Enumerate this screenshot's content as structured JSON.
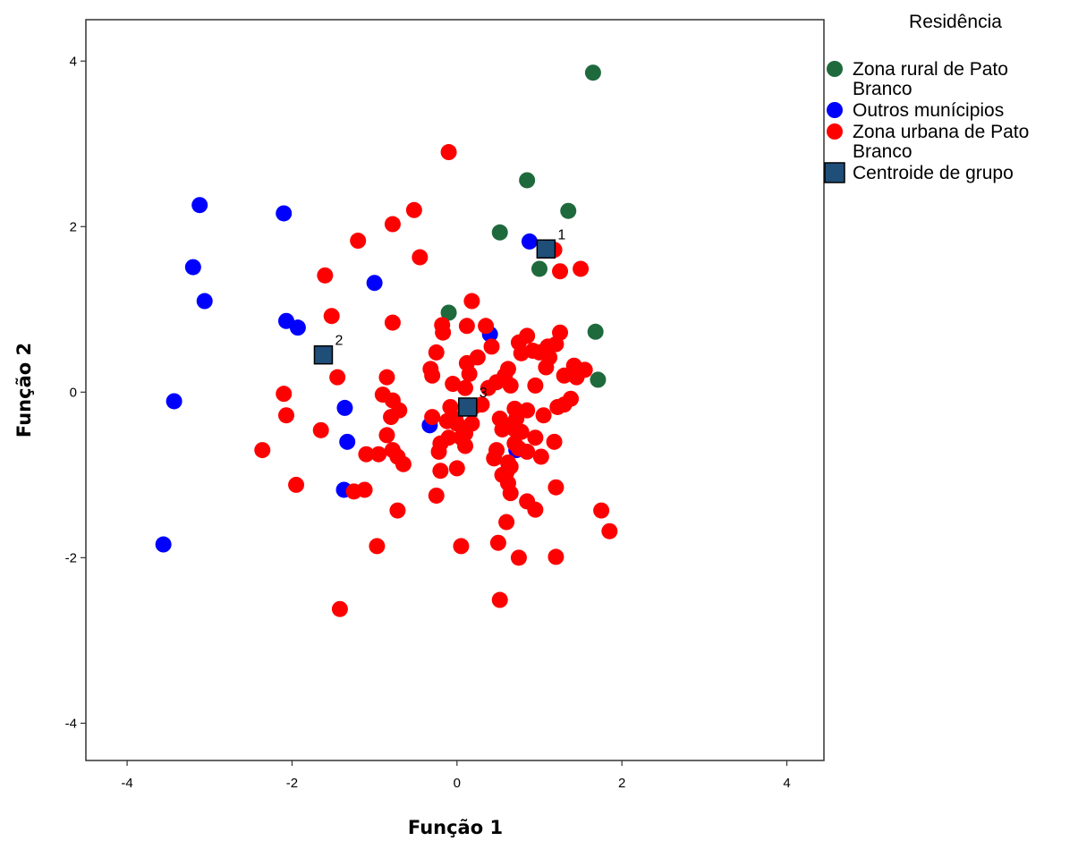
{
  "chart_data": {
    "type": "scatter",
    "xlabel": "Função 1",
    "ylabel": "Função 2",
    "xlim": [
      -4.5,
      4.45
    ],
    "ylim": [
      -4.45,
      4.5
    ],
    "xticks": [
      -4,
      -2,
      0,
      2,
      4
    ],
    "yticks": [
      -4,
      -2,
      0,
      2,
      4
    ],
    "xtick_labels": [
      "-4",
      "-2",
      "0",
      "2",
      "4"
    ],
    "ytick_labels": [
      "-4",
      "-2",
      "0",
      "2",
      "4"
    ],
    "grid": false,
    "legend_placement": "right",
    "legend_title": "Residência",
    "series": [
      {
        "name": "Zona rural de Pato Branco",
        "legend_lines": [
          "Zona rural de Pato",
          "Branco"
        ],
        "color": "#1e6a3d",
        "marker": "circle",
        "points": [
          [
            1.65,
            3.86
          ],
          [
            0.85,
            2.56
          ],
          [
            1.35,
            2.19
          ],
          [
            0.52,
            1.93
          ],
          [
            1.0,
            1.49
          ],
          [
            -0.1,
            0.96
          ],
          [
            1.68,
            0.73
          ],
          [
            1.71,
            0.15
          ]
        ]
      },
      {
        "name": "Outros munícipios",
        "legend_lines": [
          "Outros munícipios"
        ],
        "color": "#0000ff",
        "marker": "circle",
        "points": [
          [
            -3.12,
            2.26
          ],
          [
            -2.1,
            2.16
          ],
          [
            -3.2,
            1.51
          ],
          [
            -3.06,
            1.1
          ],
          [
            -1.0,
            1.32
          ],
          [
            0.88,
            1.82
          ],
          [
            -2.07,
            0.86
          ],
          [
            -1.93,
            0.78
          ],
          [
            0.4,
            0.7
          ],
          [
            -3.43,
            -0.11
          ],
          [
            -1.36,
            -0.19
          ],
          [
            -0.33,
            -0.4
          ],
          [
            -1.33,
            -0.6
          ],
          [
            0.72,
            -0.7
          ],
          [
            -1.37,
            -1.18
          ],
          [
            -3.56,
            -1.84
          ]
        ]
      },
      {
        "name": "Zona urbana de Pato Branco",
        "legend_lines": [
          "Zona urbana de Pato",
          "Branco"
        ],
        "color": "#ff0000",
        "marker": "circle",
        "points": [
          [
            -0.1,
            2.9
          ],
          [
            -0.52,
            2.2
          ],
          [
            -0.78,
            2.03
          ],
          [
            -1.2,
            1.83
          ],
          [
            -0.45,
            1.63
          ],
          [
            -1.6,
            1.41
          ],
          [
            1.18,
            1.72
          ],
          [
            1.25,
            1.46
          ],
          [
            1.5,
            1.49
          ],
          [
            0.18,
            1.1
          ],
          [
            -1.52,
            0.92
          ],
          [
            -0.78,
            0.84
          ],
          [
            -0.18,
            0.81
          ],
          [
            0.12,
            0.8
          ],
          [
            0.35,
            0.8
          ],
          [
            -0.17,
            0.72
          ],
          [
            0.75,
            0.6
          ],
          [
            0.85,
            0.68
          ],
          [
            1.25,
            0.72
          ],
          [
            1.2,
            0.58
          ],
          [
            1.1,
            0.55
          ],
          [
            1.0,
            0.48
          ],
          [
            0.78,
            0.47
          ],
          [
            0.42,
            0.55
          ],
          [
            -0.25,
            0.48
          ],
          [
            0.92,
            0.5
          ],
          [
            1.12,
            0.42
          ],
          [
            1.08,
            0.3
          ],
          [
            0.25,
            0.42
          ],
          [
            0.12,
            0.35
          ],
          [
            -0.32,
            0.28
          ],
          [
            0.15,
            0.22
          ],
          [
            0.62,
            0.28
          ],
          [
            0.58,
            0.2
          ],
          [
            1.42,
            0.32
          ],
          [
            1.55,
            0.27
          ],
          [
            1.3,
            0.2
          ],
          [
            1.45,
            0.18
          ],
          [
            -1.45,
            0.18
          ],
          [
            -0.85,
            0.18
          ],
          [
            -0.3,
            0.2
          ],
          [
            0.48,
            0.12
          ],
          [
            0.65,
            0.08
          ],
          [
            0.95,
            0.08
          ],
          [
            0.1,
            0.05
          ],
          [
            -0.05,
            0.1
          ],
          [
            0.38,
            0.05
          ],
          [
            -2.1,
            -0.02
          ],
          [
            -0.9,
            -0.03
          ],
          [
            -0.78,
            -0.1
          ],
          [
            1.38,
            -0.08
          ],
          [
            0.3,
            -0.15
          ],
          [
            1.3,
            -0.15
          ],
          [
            -0.08,
            -0.18
          ],
          [
            -0.7,
            -0.22
          ],
          [
            0.2,
            -0.18
          ],
          [
            0.7,
            -0.2
          ],
          [
            0.85,
            -0.22
          ],
          [
            1.22,
            -0.18
          ],
          [
            -2.07,
            -0.28
          ],
          [
            -0.8,
            -0.3
          ],
          [
            -0.3,
            -0.3
          ],
          [
            -0.12,
            -0.35
          ],
          [
            -0.02,
            -0.32
          ],
          [
            0.52,
            -0.32
          ],
          [
            0.72,
            -0.32
          ],
          [
            1.05,
            -0.28
          ],
          [
            0.18,
            -0.38
          ],
          [
            0.62,
            -0.4
          ],
          [
            0.7,
            -0.45
          ],
          [
            0.0,
            -0.38
          ],
          [
            -1.65,
            -0.46
          ],
          [
            0.55,
            -0.45
          ],
          [
            0.78,
            -0.48
          ],
          [
            0.1,
            -0.5
          ],
          [
            -0.85,
            -0.52
          ],
          [
            -0.1,
            -0.55
          ],
          [
            0.05,
            -0.55
          ],
          [
            0.95,
            -0.55
          ],
          [
            1.18,
            -0.6
          ],
          [
            -0.2,
            -0.62
          ],
          [
            0.7,
            -0.62
          ],
          [
            0.75,
            -0.68
          ],
          [
            0.1,
            -0.65
          ],
          [
            0.48,
            -0.7
          ],
          [
            0.85,
            -0.72
          ],
          [
            -2.36,
            -0.7
          ],
          [
            -0.78,
            -0.7
          ],
          [
            -0.22,
            -0.72
          ],
          [
            -1.1,
            -0.75
          ],
          [
            -0.95,
            -0.75
          ],
          [
            -0.72,
            -0.78
          ],
          [
            1.02,
            -0.78
          ],
          [
            0.45,
            -0.8
          ],
          [
            -0.65,
            -0.87
          ],
          [
            0.62,
            -0.85
          ],
          [
            0.65,
            -0.9
          ],
          [
            -0.2,
            -0.95
          ],
          [
            0.0,
            -0.92
          ],
          [
            0.6,
            -0.97
          ],
          [
            0.55,
            -1.0
          ],
          [
            0.62,
            -1.1
          ],
          [
            -1.95,
            -1.12
          ],
          [
            1.2,
            -1.15
          ],
          [
            -1.25,
            -1.2
          ],
          [
            -1.12,
            -1.18
          ],
          [
            0.65,
            -1.22
          ],
          [
            -0.25,
            -1.25
          ],
          [
            0.85,
            -1.32
          ],
          [
            0.95,
            -1.42
          ],
          [
            -0.72,
            -1.43
          ],
          [
            1.75,
            -1.43
          ],
          [
            0.6,
            -1.57
          ],
          [
            1.85,
            -1.68
          ],
          [
            0.5,
            -1.82
          ],
          [
            -0.97,
            -1.86
          ],
          [
            0.05,
            -1.86
          ],
          [
            0.75,
            -2.0
          ],
          [
            1.2,
            -1.99
          ],
          [
            0.52,
            -2.51
          ],
          [
            -1.42,
            -2.62
          ]
        ]
      },
      {
        "name": "Centroide de grupo",
        "legend_lines": [
          "Centroide de grupo"
        ],
        "color": "#1f4e79",
        "marker": "square",
        "points": [
          [
            1.08,
            1.73
          ],
          [
            -1.62,
            0.45
          ],
          [
            0.13,
            -0.18
          ]
        ],
        "labels": [
          "1",
          "2",
          "3"
        ]
      }
    ]
  }
}
